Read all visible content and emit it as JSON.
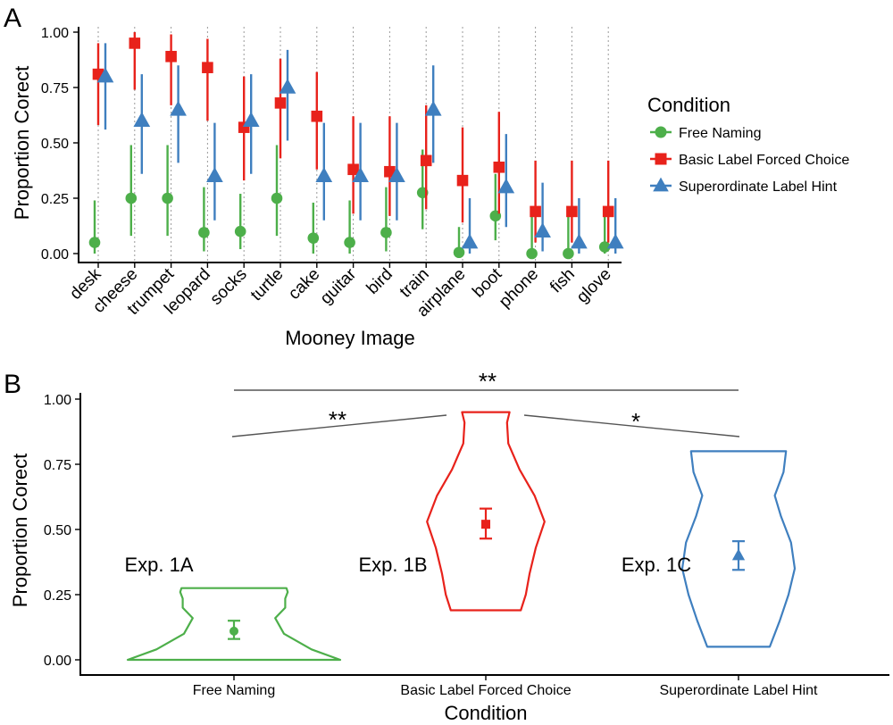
{
  "colors": {
    "free_naming": "#4daf4a",
    "basic_label": "#e8221b",
    "superordinate": "#3f7fbf"
  },
  "chart_data": [
    {
      "type": "scatter",
      "panel_label": "A",
      "xlabel": "Mooney Image",
      "ylabel": "Proportion Corect",
      "ylim": [
        0,
        1
      ],
      "yticks": [
        "0.00",
        "0.25",
        "0.50",
        "0.75",
        "1.00"
      ],
      "ytick_values": [
        0,
        0.25,
        0.5,
        0.75,
        1.0
      ],
      "categories": [
        "desk",
        "cheese",
        "trumpet",
        "leopard",
        "socks",
        "turtle",
        "cake",
        "guitar",
        "bird",
        "train",
        "airplane",
        "boot",
        "phone",
        "fish",
        "glove"
      ],
      "legend": {
        "title": "Condition",
        "position": "right",
        "entries": [
          "Free Naming",
          "Basic Label Forced Choice",
          "Superordinate Label Hint"
        ]
      },
      "series": [
        {
          "name": "Free Naming",
          "marker": "circle",
          "values": [
            0.05,
            0.25,
            0.25,
            0.095,
            0.1,
            0.25,
            0.07,
            0.05,
            0.095,
            0.275,
            0.005,
            0.17,
            0.0,
            0.0,
            0.03
          ],
          "lower": [
            0.0,
            0.08,
            0.08,
            0.01,
            0.02,
            0.08,
            0.0,
            0.0,
            0.01,
            0.11,
            0.0,
            0.06,
            0.0,
            0.0,
            0.0
          ],
          "upper": [
            0.24,
            0.49,
            0.49,
            0.3,
            0.27,
            0.49,
            0.23,
            0.24,
            0.3,
            0.47,
            0.12,
            0.36,
            0.17,
            0.17,
            0.17
          ]
        },
        {
          "name": "Basic Label Forced Choice",
          "marker": "square",
          "values": [
            0.81,
            0.95,
            0.89,
            0.84,
            0.57,
            0.68,
            0.62,
            0.38,
            0.37,
            0.42,
            0.33,
            0.39,
            0.19,
            0.19,
            0.19
          ],
          "lower": [
            0.58,
            0.74,
            0.67,
            0.6,
            0.33,
            0.43,
            0.38,
            0.18,
            0.17,
            0.2,
            0.14,
            0.18,
            0.05,
            0.05,
            0.05
          ],
          "upper": [
            0.95,
            1.0,
            0.99,
            0.97,
            0.8,
            0.88,
            0.82,
            0.62,
            0.62,
            0.67,
            0.57,
            0.64,
            0.42,
            0.42,
            0.42
          ]
        },
        {
          "name": "Superordinate Label Hint",
          "marker": "triangle",
          "values": [
            0.8,
            0.6,
            0.65,
            0.35,
            0.6,
            0.75,
            0.35,
            0.35,
            0.35,
            0.65,
            0.05,
            0.3,
            0.1,
            0.05,
            0.05
          ],
          "lower": [
            0.56,
            0.36,
            0.41,
            0.15,
            0.36,
            0.51,
            0.15,
            0.15,
            0.15,
            0.41,
            0.0,
            0.12,
            0.01,
            0.0,
            0.0
          ],
          "upper": [
            0.95,
            0.81,
            0.85,
            0.59,
            0.81,
            0.92,
            0.59,
            0.59,
            0.59,
            0.85,
            0.25,
            0.54,
            0.32,
            0.25,
            0.25
          ]
        }
      ]
    },
    {
      "type": "violin",
      "panel_label": "B",
      "xlabel": "Condition",
      "ylabel": "Proportion Corect",
      "ylim": [
        0,
        1
      ],
      "yticks": [
        "0.00",
        "0.25",
        "0.50",
        "0.75",
        "1.00"
      ],
      "ytick_values": [
        0,
        0.25,
        0.5,
        0.75,
        1.0
      ],
      "categories": [
        "Free Naming",
        "Basic Label Forced Choice",
        "Superordinate Label Hint"
      ],
      "groups": [
        {
          "name": "Free Naming",
          "experiment": "Exp. 1A",
          "marker": "circle",
          "mean": 0.11,
          "ci": [
            0.08,
            0.15
          ],
          "min": 0.0,
          "max": 0.275,
          "profile": [
            [
              0.0,
              0.85
            ],
            [
              0.04,
              0.62
            ],
            [
              0.1,
              0.4
            ],
            [
              0.16,
              0.33
            ],
            [
              0.2,
              0.41
            ],
            [
              0.235,
              0.41
            ],
            [
              0.26,
              0.43
            ],
            [
              0.275,
              0.42
            ]
          ]
        },
        {
          "name": "Basic Label Forced Choice",
          "experiment": "Exp. 1B",
          "marker": "square",
          "mean": 0.52,
          "ci": [
            0.465,
            0.58
          ],
          "min": 0.19,
          "max": 0.95,
          "profile": [
            [
              0.19,
              0.28
            ],
            [
              0.25,
              0.32
            ],
            [
              0.33,
              0.35
            ],
            [
              0.43,
              0.4
            ],
            [
              0.53,
              0.47
            ],
            [
              0.63,
              0.39
            ],
            [
              0.73,
              0.27
            ],
            [
              0.83,
              0.18
            ],
            [
              0.91,
              0.17
            ],
            [
              0.95,
              0.19
            ]
          ]
        },
        {
          "name": "Superordinate Label Hint",
          "experiment": "Exp. 1C",
          "marker": "triangle",
          "mean": 0.4,
          "ci": [
            0.345,
            0.455
          ],
          "min": 0.05,
          "max": 0.8,
          "profile": [
            [
              0.05,
              0.25
            ],
            [
              0.15,
              0.33
            ],
            [
              0.25,
              0.4
            ],
            [
              0.35,
              0.45
            ],
            [
              0.45,
              0.42
            ],
            [
              0.55,
              0.34
            ],
            [
              0.63,
              0.29
            ],
            [
              0.72,
              0.36
            ],
            [
              0.8,
              0.38
            ]
          ]
        }
      ],
      "comparisons": [
        {
          "from": "Free Naming",
          "to": "Basic Label Forced Choice",
          "label": "**"
        },
        {
          "from": "Basic Label Forced Choice",
          "to": "Superordinate Label Hint",
          "label": "*"
        },
        {
          "from": "Free Naming",
          "to": "Superordinate Label Hint",
          "label": "**"
        }
      ]
    }
  ]
}
